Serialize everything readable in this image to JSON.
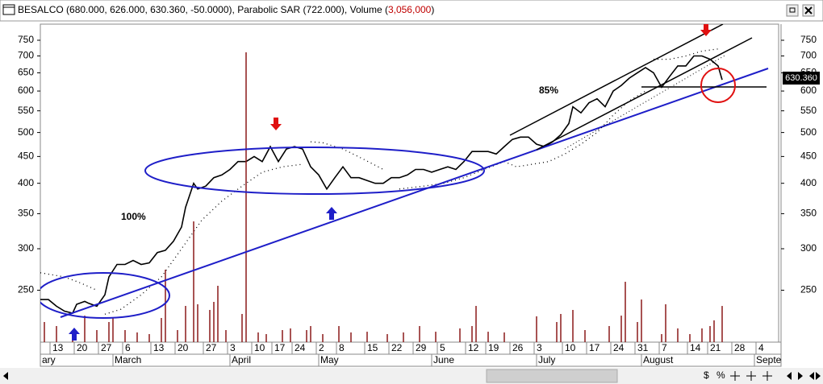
{
  "chart_data": {
    "type": "line",
    "log_scale": true,
    "grid": false,
    "title_parts": [
      "BESALCO (680.000, 626.000, 630.360, -50.0000), Parabolic SAR (722.000), Volume (",
      "3,056,000",
      ")"
    ],
    "annotations": [
      "100%",
      "85%"
    ],
    "last_value_label": "630.360",
    "ylim": [
      199,
      805
    ],
    "yticks": [
      250,
      300,
      350,
      400,
      450,
      500,
      550,
      600,
      650,
      700,
      750
    ],
    "xlim": [
      0,
      183
    ],
    "xticks": [
      {
        "value": 4,
        "label": "13"
      },
      {
        "value": 10,
        "label": "20"
      },
      {
        "value": 16,
        "label": "27"
      },
      {
        "value": 22,
        "label": "6"
      },
      {
        "value": 29,
        "label": "13"
      },
      {
        "value": 35,
        "label": "20"
      },
      {
        "value": 42,
        "label": "27"
      },
      {
        "value": 48,
        "label": "3"
      },
      {
        "value": 54,
        "label": "10"
      },
      {
        "value": 59,
        "label": "17"
      },
      {
        "value": 64,
        "label": "24"
      },
      {
        "value": 70,
        "label": "2"
      },
      {
        "value": 75,
        "label": "8"
      },
      {
        "value": 82,
        "label": "15"
      },
      {
        "value": 88,
        "label": "22"
      },
      {
        "value": 94,
        "label": "29"
      },
      {
        "value": 100,
        "label": "5"
      },
      {
        "value": 107,
        "label": "12"
      },
      {
        "value": 112,
        "label": "19"
      },
      {
        "value": 118,
        "label": "26"
      },
      {
        "value": 124,
        "label": "3"
      },
      {
        "value": 131,
        "label": "10"
      },
      {
        "value": 137,
        "label": "17"
      },
      {
        "value": 143,
        "label": "24"
      },
      {
        "value": 149,
        "label": "31"
      },
      {
        "value": 155,
        "label": "7"
      },
      {
        "value": 162,
        "label": "14"
      },
      {
        "value": 167,
        "label": "21"
      },
      {
        "value": 173,
        "label": "28"
      },
      {
        "value": 179,
        "label": "4"
      }
    ],
    "month_ticks": [
      {
        "value": 0,
        "label": "ary"
      },
      {
        "value": 18,
        "label": "March"
      },
      {
        "value": 47,
        "label": "April"
      },
      {
        "value": 69,
        "label": "May"
      },
      {
        "value": 97,
        "label": "June"
      },
      {
        "value": 123,
        "label": "July"
      },
      {
        "value": 149,
        "label": "August"
      },
      {
        "value": 177,
        "label": "Septe"
      }
    ],
    "series": [
      {
        "color": "#000000",
        "x": [
          0,
          2,
          4,
          6,
          8,
          9,
          11,
          12,
          14,
          16,
          17,
          19,
          21,
          23,
          25,
          27,
          29,
          31,
          33,
          35,
          36,
          38,
          39,
          41,
          43,
          45,
          47,
          49,
          51,
          53,
          55,
          57,
          59,
          61,
          63,
          65,
          67,
          69,
          71,
          73,
          75,
          77,
          79,
          81,
          83,
          85,
          87,
          89,
          91,
          93,
          95,
          97,
          99,
          101,
          103,
          105,
          107,
          109,
          111,
          113,
          115,
          117,
          119,
          121,
          123,
          125,
          127,
          129,
          131,
          132,
          134,
          136,
          138,
          140,
          142,
          144,
          146,
          148,
          150,
          152,
          154,
          156,
          158,
          160,
          162,
          164,
          166,
          168,
          169
        ],
        "values": [
          240,
          240,
          233,
          228,
          226,
          235,
          238,
          236,
          233,
          245,
          265,
          280,
          280,
          285,
          280,
          282,
          295,
          298,
          310,
          330,
          360,
          400,
          390,
          395,
          410,
          415,
          425,
          440,
          440,
          450,
          440,
          470,
          440,
          465,
          470,
          465,
          430,
          415,
          390,
          410,
          430,
          410,
          410,
          405,
          400,
          400,
          410,
          410,
          415,
          425,
          425,
          420,
          425,
          430,
          425,
          440,
          460,
          460,
          460,
          455,
          470,
          485,
          490,
          490,
          475,
          470,
          480,
          495,
          520,
          560,
          545,
          570,
          580,
          560,
          600,
          615,
          635,
          650,
          665,
          650,
          610,
          640,
          670,
          670,
          700,
          700,
          690,
          670,
          630.36
        ]
      },
      {
        "color": "#000000",
        "style": "dotted",
        "x": [
          0,
          6,
          10,
          14,
          15,
          16,
          20,
          25,
          30,
          35,
          40,
          45,
          50,
          55,
          60,
          65,
          66,
          67,
          70,
          75,
          80,
          85,
          88,
          89,
          95,
          100,
          105,
          110,
          115,
          118,
          122,
          126,
          130,
          134,
          138,
          142,
          146,
          150,
          151,
          152,
          156,
          160,
          164,
          168
        ],
        "values": [
          270,
          265,
          258,
          250,
          null,
          225,
          230,
          245,
          265,
          300,
          340,
          370,
          395,
          420,
          430,
          435,
          null,
          480,
          478,
          465,
          445,
          425,
          null,
          390,
          395,
          400,
          410,
          425,
          440,
          430,
          435,
          440,
          455,
          475,
          500,
          540,
          575,
          600,
          null,
          690,
          690,
          700,
          715,
          722
        ]
      },
      {
        "color": "#8b1a1a",
        "style": "volume",
        "x": [
          1,
          4,
          8,
          11,
          14,
          17,
          18,
          21,
          24,
          27,
          30,
          31,
          34,
          36,
          38,
          39,
          42,
          43,
          44,
          46,
          50,
          51,
          54,
          56,
          60,
          62,
          66,
          67,
          70,
          74,
          77,
          81,
          86,
          90,
          94,
          98,
          104,
          107,
          108,
          111,
          115,
          123,
          128,
          129,
          132,
          135,
          141,
          144,
          145,
          148,
          149,
          154,
          155,
          158,
          161,
          164,
          166,
          167,
          169
        ],
        "values": [
          1700000,
          1360000,
          1020000,
          2240000,
          1020000,
          1700000,
          2040000,
          1020000,
          820000,
          680000,
          2040000,
          6120000,
          1020000,
          3060000,
          10200000,
          3200000,
          2720000,
          3400000,
          4760000,
          1020000,
          2380000,
          24480000,
          820000,
          680000,
          1020000,
          1160000,
          1020000,
          1360000,
          680000,
          1360000,
          820000,
          880000,
          680000,
          820000,
          1360000,
          880000,
          1160000,
          1360000,
          3060000,
          880000,
          820000,
          2180000,
          1700000,
          2380000,
          2720000,
          1020000,
          1360000,
          2240000,
          5100000,
          1700000,
          3600000,
          680000,
          3200000,
          1160000,
          680000,
          1160000,
          1360000,
          1840000,
          3056000
        ]
      }
    ]
  }
}
